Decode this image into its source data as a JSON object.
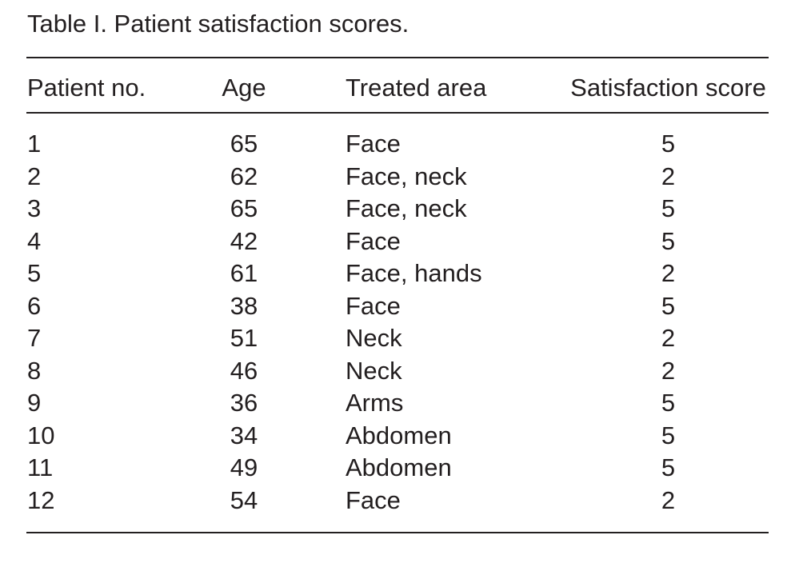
{
  "colors": {
    "text": "#231f20",
    "rule": "#231f20",
    "background": "#ffffff"
  },
  "table": {
    "title": "Table I. Patient satisfaction scores.",
    "columns": [
      "Patient no.",
      "Age",
      "Treated area",
      "Satisfaction score"
    ],
    "rows": [
      {
        "patient_no": "1",
        "age": "65",
        "treated_area": "Face",
        "satisfaction_score": "5"
      },
      {
        "patient_no": "2",
        "age": "62",
        "treated_area": "Face, neck",
        "satisfaction_score": "2"
      },
      {
        "patient_no": "3",
        "age": "65",
        "treated_area": "Face, neck",
        "satisfaction_score": "5"
      },
      {
        "patient_no": "4",
        "age": "42",
        "treated_area": "Face",
        "satisfaction_score": "5"
      },
      {
        "patient_no": "5",
        "age": "61",
        "treated_area": "Face, hands",
        "satisfaction_score": "2"
      },
      {
        "patient_no": "6",
        "age": "38",
        "treated_area": "Face",
        "satisfaction_score": "5"
      },
      {
        "patient_no": "7",
        "age": "51",
        "treated_area": "Neck",
        "satisfaction_score": "2"
      },
      {
        "patient_no": "8",
        "age": "46",
        "treated_area": "Neck",
        "satisfaction_score": "2"
      },
      {
        "patient_no": "9",
        "age": "36",
        "treated_area": "Arms",
        "satisfaction_score": "5"
      },
      {
        "patient_no": "10",
        "age": "34",
        "treated_area": "Abdomen",
        "satisfaction_score": "5"
      },
      {
        "patient_no": "11",
        "age": "49",
        "treated_area": "Abdomen",
        "satisfaction_score": "5"
      },
      {
        "patient_no": "12",
        "age": "54",
        "treated_area": "Face",
        "satisfaction_score": "2"
      }
    ]
  }
}
